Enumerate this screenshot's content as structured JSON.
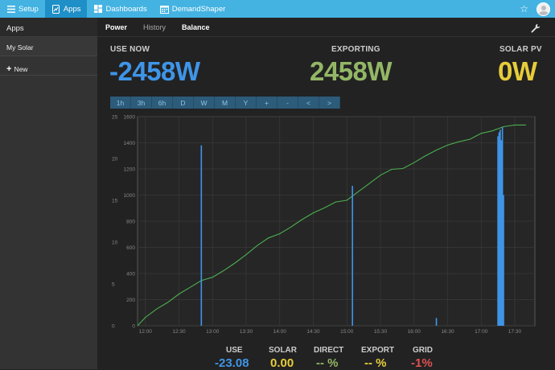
{
  "topnav": {
    "items": [
      {
        "label": "Setup",
        "active": false
      },
      {
        "label": "Apps",
        "active": true
      },
      {
        "label": "Dashboards",
        "active": false
      },
      {
        "label": "DemandShaper",
        "active": false
      }
    ]
  },
  "sidebar": {
    "title": "Apps",
    "app": "My Solar",
    "new_label": "New"
  },
  "tabs": [
    {
      "label": "Power"
    },
    {
      "label": "History"
    },
    {
      "label": "Balance"
    }
  ],
  "stats": {
    "use_now": {
      "label": "USE NOW",
      "value": "-2458W",
      "color": "#3f95e8"
    },
    "exporting": {
      "label": "EXPORTING",
      "value": "2458W",
      "color": "#93b766"
    },
    "solar_pv": {
      "label": "SOLAR PV",
      "value": "0W",
      "color": "#e6cd3a"
    }
  },
  "time_buttons": [
    "1h",
    "3h",
    "6h",
    "D",
    "W",
    "M",
    "Y",
    "+",
    "-",
    "<",
    ">"
  ],
  "footer": {
    "use": {
      "label": "USE",
      "value": "-23.08",
      "color": "#3f95e8"
    },
    "solar": {
      "label": "SOLAR",
      "value": "0.00",
      "color": "#e6cd3a"
    },
    "direct": {
      "label": "DIRECT",
      "value": "-- %",
      "color": "#93b766"
    },
    "export": {
      "label": "EXPORT",
      "value": "-- %",
      "color": "#e6cd3a"
    },
    "grid": {
      "label": "GRID",
      "value": "-1%",
      "color": "#e05050"
    }
  },
  "chart_data": {
    "type": "line",
    "x_ticks": [
      "12:00",
      "12:30",
      "13:00",
      "13:30",
      "14:00",
      "14:30",
      "15:00",
      "15:30",
      "16:00",
      "16:30",
      "17:00",
      "17:30"
    ],
    "y_left_ticks": [
      0,
      5,
      10,
      15,
      20,
      25
    ],
    "y_right_ticks": [
      0,
      200,
      400,
      600,
      800,
      1000,
      1200,
      1400,
      1600
    ],
    "y_left_range": [
      0,
      25
    ],
    "y_right_range": [
      0,
      1600
    ],
    "grid": true,
    "series": [
      {
        "axis": "left",
        "style": "line",
        "color": "#4caf50",
        "x": [
          "11:53",
          "12:00",
          "12:10",
          "12:20",
          "12:30",
          "12:40",
          "12:50",
          "13:00",
          "13:10",
          "13:20",
          "13:30",
          "13:40",
          "13:50",
          "14:00",
          "14:10",
          "14:20",
          "14:30",
          "14:40",
          "14:50",
          "15:00",
          "15:10",
          "15:20",
          "15:30",
          "15:40",
          "15:50",
          "16:00",
          "16:10",
          "16:20",
          "16:30",
          "16:40",
          "16:50",
          "17:00",
          "17:10",
          "17:20",
          "17:30",
          "17:40"
        ],
        "values": [
          0.0,
          1.0,
          2.0,
          2.8,
          3.8,
          4.6,
          5.4,
          5.8,
          6.6,
          7.5,
          8.5,
          9.6,
          10.5,
          11.0,
          11.8,
          12.7,
          13.5,
          14.1,
          14.8,
          15.0,
          16.0,
          17.0,
          18.0,
          18.7,
          18.8,
          19.5,
          20.3,
          21.0,
          21.6,
          22.0,
          22.3,
          23.0,
          23.3,
          23.8,
          24.0,
          24.0
        ]
      },
      {
        "axis": "right",
        "style": "spike",
        "color": "#3f95e8",
        "x": [
          "12:50",
          "15:05",
          "16:20",
          "17:15",
          "17:16",
          "17:17",
          "17:18",
          "17:19",
          "17:20"
        ],
        "values": [
          1380,
          1070,
          60,
          1450,
          1480,
          1500,
          1420,
          1520,
          1000
        ]
      }
    ]
  }
}
